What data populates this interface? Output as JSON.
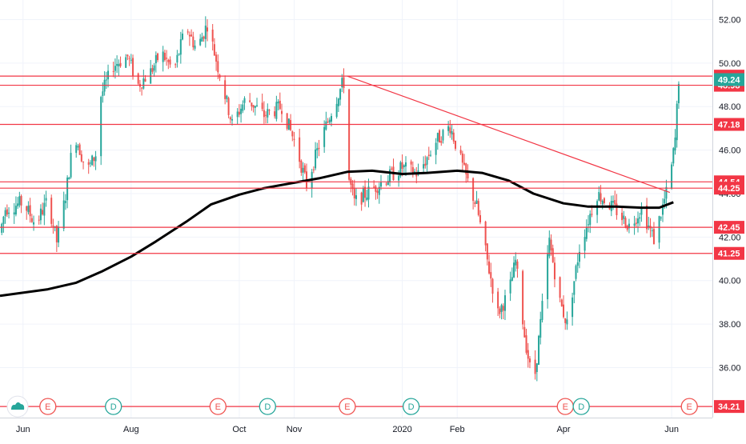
{
  "chart_data": {
    "type": "candlestick",
    "title": "",
    "xlabel": "",
    "ylabel": "",
    "x_ticks": [
      "Jun",
      "Aug",
      "Oct",
      "Nov",
      "2020",
      "Feb",
      "Apr",
      "Jun"
    ],
    "x_tick_dates": [
      "2019-06-01",
      "2019-08-01",
      "2019-10-01",
      "2019-11-01",
      "2020-01-01",
      "2020-02-01",
      "2020-04-01",
      "2020-06-01"
    ],
    "y_ticks": [
      52.0,
      50.0,
      48.0,
      46.0,
      44.0,
      42.0,
      40.0,
      38.0,
      36.0
    ],
    "ylim": [
      33.7,
      52.9
    ],
    "xlim": [
      "2019-05-19",
      "2020-06-24"
    ],
    "grid": true,
    "horizontal_levels": [
      49.4,
      48.98,
      47.18,
      44.54,
      44.25,
      42.45,
      41.25,
      34.21
    ],
    "level_labels": [
      "49.40",
      "48.98",
      "47.18",
      "44.54",
      "44.25",
      "42.45",
      "41.25",
      "34.21"
    ],
    "last_price": 49.24,
    "last_price_label": "49.24",
    "trendline": {
      "from": [
        "2019-12-01",
        49.4
      ],
      "to": [
        "2020-05-31",
        44.05
      ]
    },
    "moving_average": {
      "name": "",
      "points": [
        [
          "2019-05-19",
          39.3
        ],
        [
          "2019-06-15",
          39.6
        ],
        [
          "2019-07-01",
          39.9
        ],
        [
          "2019-07-15",
          40.4
        ],
        [
          "2019-08-01",
          41.1
        ],
        [
          "2019-08-15",
          41.8
        ],
        [
          "2019-09-01",
          42.7
        ],
        [
          "2019-09-15",
          43.5
        ],
        [
          "2019-10-01",
          43.95
        ],
        [
          "2019-10-15",
          44.25
        ],
        [
          "2019-11-01",
          44.5
        ],
        [
          "2019-11-15",
          44.7
        ],
        [
          "2019-12-01",
          45.0
        ],
        [
          "2019-12-15",
          45.05
        ],
        [
          "2020-01-01",
          44.9
        ],
        [
          "2020-01-15",
          44.95
        ],
        [
          "2020-02-01",
          45.05
        ],
        [
          "2020-02-15",
          44.95
        ],
        [
          "2020-03-01",
          44.6
        ],
        [
          "2020-03-15",
          44.0
        ],
        [
          "2020-04-01",
          43.55
        ],
        [
          "2020-04-15",
          43.4
        ],
        [
          "2020-05-01",
          43.4
        ],
        [
          "2020-05-15",
          43.35
        ],
        [
          "2020-05-25",
          43.35
        ],
        [
          "2020-06-02",
          43.6
        ]
      ]
    },
    "price_path": [
      [
        "2019-05-19",
        42.2
      ],
      [
        "2019-05-22",
        43.3
      ],
      [
        "2019-06-01",
        43.6
      ],
      [
        "2019-06-08",
        42.6
      ],
      [
        "2019-06-15",
        43.7
      ],
      [
        "2019-06-20",
        41.8
      ],
      [
        "2019-06-25",
        43.9
      ],
      [
        "2019-06-30",
        46.8
      ],
      [
        "2019-07-07",
        45.0
      ],
      [
        "2019-07-12",
        45.8
      ],
      [
        "2019-07-15",
        48.5
      ],
      [
        "2019-07-22",
        49.9
      ],
      [
        "2019-07-30",
        50.3
      ],
      [
        "2019-08-05",
        49.0
      ],
      [
        "2019-08-12",
        49.6
      ],
      [
        "2019-08-18",
        50.5
      ],
      [
        "2019-08-25",
        49.6
      ],
      [
        "2019-09-01",
        51.7
      ],
      [
        "2019-09-07",
        50.6
      ],
      [
        "2019-09-13",
        51.8
      ],
      [
        "2019-09-20",
        49.5
      ],
      [
        "2019-09-27",
        47.2
      ],
      [
        "2019-10-05",
        48.4
      ],
      [
        "2019-10-15",
        47.6
      ],
      [
        "2019-10-25",
        48.0
      ],
      [
        "2019-11-02",
        46.2
      ],
      [
        "2019-11-08",
        44.4
      ],
      [
        "2019-11-15",
        46.2
      ],
      [
        "2019-11-22",
        47.8
      ],
      [
        "2019-11-28",
        49.0
      ],
      [
        "2019-11-30",
        49.2
      ],
      [
        "2019-12-01",
        45.0
      ],
      [
        "2019-12-05",
        43.6
      ],
      [
        "2019-12-15",
        44.2
      ],
      [
        "2019-12-25",
        44.8
      ],
      [
        "2020-01-01",
        45.2
      ],
      [
        "2020-01-10",
        44.9
      ],
      [
        "2020-01-20",
        46.4
      ],
      [
        "2020-01-28",
        47.1
      ],
      [
        "2020-02-05",
        45.0
      ],
      [
        "2020-02-12",
        43.4
      ],
      [
        "2020-02-18",
        40.9
      ],
      [
        "2020-02-24",
        38.5
      ],
      [
        "2020-03-01",
        39.4
      ],
      [
        "2020-03-05",
        40.9
      ],
      [
        "2020-03-10",
        37.5
      ],
      [
        "2020-03-15",
        35.0
      ],
      [
        "2020-03-20",
        38.8
      ],
      [
        "2020-03-24",
        41.8
      ],
      [
        "2020-03-30",
        39.0
      ],
      [
        "2020-04-03",
        38.0
      ],
      [
        "2020-04-10",
        41.5
      ],
      [
        "2020-04-15",
        42.8
      ],
      [
        "2020-04-20",
        44.0
      ],
      [
        "2020-05-01",
        43.2
      ],
      [
        "2020-05-08",
        42.5
      ],
      [
        "2020-05-15",
        43.3
      ],
      [
        "2020-05-22",
        41.9
      ],
      [
        "2020-05-28",
        43.7
      ],
      [
        "2020-05-31",
        44.6
      ],
      [
        "2020-06-03",
        46.5
      ],
      [
        "2020-06-05",
        49.3
      ]
    ],
    "events": [
      {
        "date": "2019-06-15",
        "label": "E",
        "kind": "earnings"
      },
      {
        "date": "2019-07-22",
        "label": "D",
        "kind": "dividend"
      },
      {
        "date": "2019-09-19",
        "label": "E",
        "kind": "earnings"
      },
      {
        "date": "2019-10-17",
        "label": "D",
        "kind": "dividend"
      },
      {
        "date": "2019-12-01",
        "label": "E",
        "kind": "earnings"
      },
      {
        "date": "2020-01-06",
        "label": "D",
        "kind": "dividend"
      },
      {
        "date": "2020-04-02",
        "label": "E",
        "kind": "earnings"
      },
      {
        "date": "2020-04-11",
        "label": "D",
        "kind": "dividend"
      },
      {
        "date": "2020-06-11",
        "label": "E",
        "kind": "earnings"
      }
    ],
    "colors": {
      "up": "#26a69a",
      "down": "#ef5350",
      "levels": "#f23645",
      "moving_average": "#000000",
      "last_price": "#26a69a",
      "grid": "#f0f3fa",
      "axis_text": "#131722",
      "dividend_badge": "#26a69a",
      "earnings_badge": "#ef5350",
      "logo": "#26a69a"
    },
    "logo_icon": "tradingview-cloud-icon"
  }
}
